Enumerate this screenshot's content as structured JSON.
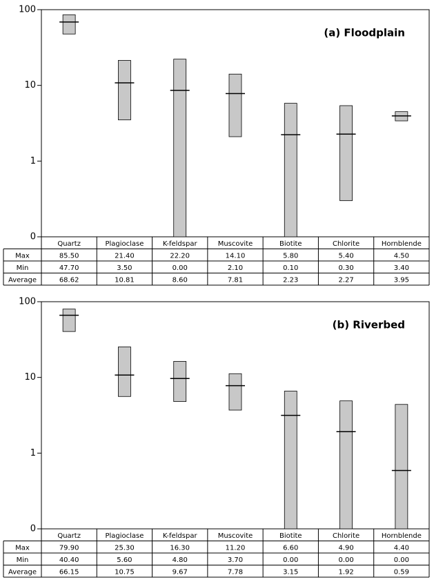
{
  "chart_data": [
    {
      "type": "range",
      "title": "(a) Floodplain",
      "categories": [
        "Quartz",
        "Plagioclase",
        "K-feldspar",
        "Muscovite",
        "Biotite",
        "Chlorite",
        "Hornblende"
      ],
      "series": [
        {
          "name": "Max",
          "values": [
            85.5,
            21.4,
            22.2,
            14.1,
            5.8,
            5.4,
            4.5
          ],
          "value_labels": [
            "85.50",
            "21.40",
            "22.20",
            "14.10",
            "5.80",
            "5.40",
            "4.50"
          ]
        },
        {
          "name": "Min",
          "values": [
            47.7,
            3.5,
            0,
            2.1,
            0.1,
            0.3,
            3.4
          ],
          "value_labels": [
            "47.70",
            "3.50",
            "0.00",
            "2.10",
            "0.10",
            "0.30",
            "3.40"
          ]
        },
        {
          "name": "Average",
          "values": [
            68.62,
            10.81,
            8.6,
            7.81,
            2.23,
            2.27,
            3.95
          ],
          "value_labels": [
            "68.62",
            "10.81",
            "8.60",
            "7.81",
            "2.23",
            "2.27",
            "3.95"
          ]
        }
      ],
      "log_scale": true,
      "ylim": [
        0.1,
        100
      ],
      "yticks": [
        {
          "value": 0.1,
          "label": "0"
        },
        1,
        10,
        100
      ],
      "bar_color": "#c8c8c8",
      "marker_color": "#000000"
    },
    {
      "type": "range",
      "title": "(b) Riverbed",
      "categories": [
        "Quartz",
        "Plagioclase",
        "K-feldspar",
        "Muscovite",
        "Biotite",
        "Chlorite",
        "Hornblende"
      ],
      "series": [
        {
          "name": "Max",
          "values": [
            79.9,
            25.3,
            16.3,
            11.2,
            6.6,
            4.9,
            4.4
          ],
          "value_labels": [
            "79.90",
            "25.30",
            "16.30",
            "11.20",
            "6.60",
            "4.90",
            "4.40"
          ]
        },
        {
          "name": "Min",
          "values": [
            40.4,
            5.6,
            4.8,
            3.7,
            0,
            0,
            0
          ],
          "value_labels": [
            "40.40",
            "5.60",
            "4.80",
            "3.70",
            "0.00",
            "0.00",
            "0.00"
          ]
        },
        {
          "name": "Average",
          "values": [
            66.15,
            10.75,
            9.67,
            7.78,
            3.15,
            1.92,
            0.59
          ],
          "value_labels": [
            "66.15",
            "10.75",
            "9.67",
            "7.78",
            "3.15",
            "1.92",
            "0.59"
          ]
        }
      ],
      "log_scale": true,
      "ylim": [
        0.1,
        100
      ],
      "yticks": [
        {
          "value": 0.1,
          "label": "0"
        },
        1,
        10,
        100
      ],
      "bar_color": "#c8c8c8",
      "marker_color": "#000000"
    }
  ]
}
